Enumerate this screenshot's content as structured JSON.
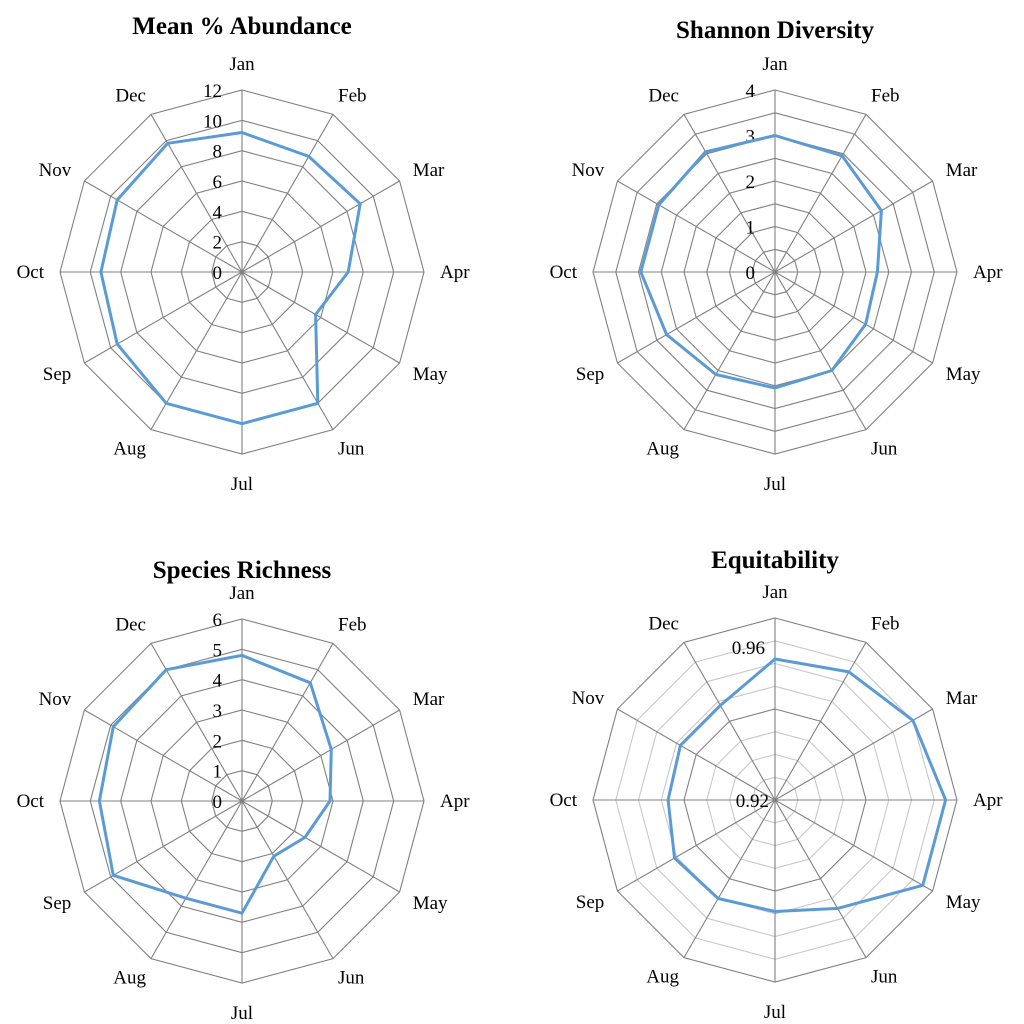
{
  "chart_data": [
    {
      "type": "radar",
      "title": "Mean % Abundance",
      "categories": [
        "Jan",
        "Feb",
        "Mar",
        "Apr",
        "May",
        "Jun",
        "Jul",
        "Aug",
        "Sep",
        "Oct",
        "Nov",
        "Dec"
      ],
      "series": [
        {
          "values": [
            9.2,
            8.8,
            9.0,
            7.0,
            5.6,
            10.0,
            10.0,
            10.0,
            9.5,
            9.3,
            9.5,
            9.8
          ]
        }
      ],
      "ticks": [
        "0",
        "2",
        "4",
        "6",
        "8",
        "10",
        "12"
      ],
      "rmin": 0,
      "rmax": 12,
      "rings": 6,
      "line_color": "#5b9bd5",
      "grid_color": "#808080"
    },
    {
      "type": "radar",
      "title": "Shannon  Diversity",
      "categories": [
        "Jan",
        "Feb",
        "Mar",
        "Apr",
        "May",
        "Jun",
        "Jul",
        "Aug",
        "Sep",
        "Oct",
        "Nov",
        "Dec"
      ],
      "series": [
        {
          "values": [
            3.0,
            2.95,
            2.7,
            2.25,
            2.3,
            2.5,
            2.55,
            2.6,
            2.75,
            2.95,
            2.95,
            3.05
          ]
        }
      ],
      "ticks": [
        "0",
        "1",
        "2",
        "3",
        "4"
      ],
      "rmin": 0,
      "rmax": 4,
      "rings": 8,
      "line_color": "#5b9bd5",
      "grid_color": "#808080"
    },
    {
      "type": "radar",
      "title": "Species Richness",
      "categories": [
        "Jan",
        "Feb",
        "Mar",
        "Apr",
        "May",
        "Jun",
        "Jul",
        "Aug",
        "Sep",
        "Oct",
        "Nov",
        "Dec"
      ],
      "series": [
        {
          "values": [
            4.8,
            4.5,
            3.4,
            2.9,
            2.4,
            2.1,
            3.7,
            3.7,
            4.9,
            4.7,
            4.9,
            5.0
          ]
        }
      ],
      "ticks": [
        "0",
        "1",
        "2",
        "3",
        "4",
        "5",
        "6"
      ],
      "rmin": 0,
      "rmax": 6,
      "rings": 6,
      "line_color": "#5b9bd5",
      "grid_color": "#808080"
    },
    {
      "type": "radar",
      "title": "Equitability",
      "categories": [
        "Jan",
        "Feb",
        "Mar",
        "Apr",
        "May",
        "Jun",
        "Jul",
        "Aug",
        "Sep",
        "Oct",
        "Nov",
        "Dec"
      ],
      "series": [
        {
          "values": [
            0.951,
            0.9525,
            0.955,
            0.9575,
            0.9575,
            0.9475,
            0.9445,
            0.945,
            0.9455,
            0.9435,
            0.944,
            0.944
          ]
        }
      ],
      "ticks": [
        "0.92",
        "0.96"
      ],
      "rmin": 0.92,
      "rmax": 0.96,
      "rings": 8,
      "line_color": "#5b9bd5",
      "grid_color": "#808080"
    }
  ]
}
